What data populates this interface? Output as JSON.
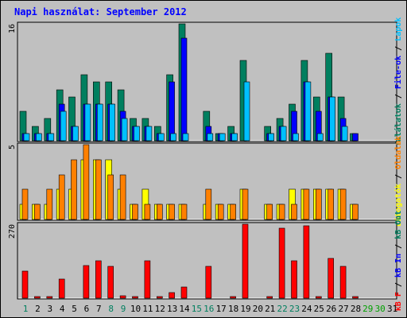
{
  "title": "Napi használat: September 2012",
  "colors": {
    "hits": "#007f5f",
    "files": "#0000ff",
    "pages": "#00c0ff",
    "visits": "#ffff00",
    "sites": "#ff8000",
    "kbin": "#0000ff",
    "kbout": "#007f5f",
    "kbf": "#ff0000",
    "weekday": "#007f5f",
    "weekend": "#000000",
    "future": "#00a000"
  },
  "chart_data": [
    {
      "type": "bar",
      "panel": "top",
      "ylim": [
        0,
        16
      ],
      "y_tick_label": "16",
      "side_legend": [
        {
          "text": "Találatok",
          "color": "#007f5f"
        },
        {
          "text": " / ",
          "color": "#000000"
        },
        {
          "text": "File-ok",
          "color": "#0000ff"
        },
        {
          "text": " / ",
          "color": "#000000"
        },
        {
          "text": "Lapok",
          "color": "#00c0ff"
        }
      ],
      "categories": [
        "1",
        "2",
        "3",
        "4",
        "5",
        "6",
        "7",
        "8",
        "9",
        "10",
        "11",
        "12",
        "13",
        "14",
        "15",
        "16",
        "17",
        "18",
        "19",
        "20",
        "21",
        "22",
        "23",
        "24",
        "25",
        "26",
        "27",
        "28",
        "29",
        "30",
        "31"
      ],
      "series": [
        {
          "name": "Találatok",
          "color": "#007f5f",
          "values": [
            4,
            2,
            3,
            7,
            6,
            9,
            8,
            8,
            7,
            3,
            3,
            2,
            9,
            16,
            0,
            4,
            1,
            2,
            11,
            0,
            2,
            3,
            5,
            11,
            6,
            12,
            6,
            1,
            0,
            0,
            0
          ]
        },
        {
          "name": "File-ok",
          "color": "#0000ff",
          "values": [
            1,
            1,
            1,
            5,
            2,
            5,
            5,
            5,
            4,
            2,
            2,
            1,
            8,
            14,
            0,
            2,
            1,
            1,
            0,
            0,
            1,
            2,
            4,
            8,
            4,
            6,
            3,
            1,
            0,
            0,
            0
          ]
        },
        {
          "name": "Lapok",
          "color": "#00c0ff",
          "values": [
            1,
            1,
            1,
            4,
            2,
            5,
            5,
            5,
            3,
            2,
            2,
            1,
            1,
            1,
            0,
            1,
            1,
            1,
            8,
            0,
            1,
            2,
            1,
            8,
            1,
            6,
            2,
            0,
            0,
            0,
            0
          ]
        }
      ]
    },
    {
      "type": "bar",
      "panel": "middle",
      "ylim": [
        0,
        5
      ],
      "y_tick_label": "5",
      "side_legend": [
        {
          "text": "Látogatók",
          "color": "#ffff00"
        },
        {
          "text": " / ",
          "color": "#000000"
        },
        {
          "text": "Oldalak",
          "color": "#ff8000"
        }
      ],
      "categories": [
        "1",
        "2",
        "3",
        "4",
        "5",
        "6",
        "7",
        "8",
        "9",
        "10",
        "11",
        "12",
        "13",
        "14",
        "15",
        "16",
        "17",
        "18",
        "19",
        "20",
        "21",
        "22",
        "23",
        "24",
        "25",
        "26",
        "27",
        "28",
        "29",
        "30",
        "31"
      ],
      "series": [
        {
          "name": "Látogatók",
          "color": "#ffff00",
          "values": [
            1,
            1,
            1,
            2,
            2,
            4,
            4,
            4,
            2,
            1,
            2,
            1,
            1,
            1,
            0,
            1,
            1,
            1,
            2,
            0,
            1,
            1,
            2,
            2,
            2,
            2,
            2,
            1,
            0,
            0,
            0
          ]
        },
        {
          "name": "Oldalak",
          "color": "#ff8000",
          "values": [
            2,
            1,
            2,
            3,
            4,
            5,
            4,
            3,
            3,
            1,
            1,
            1,
            1,
            1,
            0,
            2,
            1,
            1,
            2,
            0,
            1,
            1,
            1,
            2,
            2,
            2,
            2,
            1,
            0,
            0,
            0
          ]
        }
      ]
    },
    {
      "type": "bar",
      "panel": "bottom",
      "ylim": [
        0,
        270
      ],
      "y_tick_label": "270",
      "side_legend": [
        {
          "text": "kB F",
          "color": "#ff0000"
        },
        {
          "text": " / ",
          "color": "#000000"
        },
        {
          "text": "kB In",
          "color": "#0000ff"
        },
        {
          "text": " / ",
          "color": "#000000"
        },
        {
          "text": "kB Out",
          "color": "#007f5f"
        }
      ],
      "categories": [
        "1",
        "2",
        "3",
        "4",
        "5",
        "6",
        "7",
        "8",
        "9",
        "10",
        "11",
        "12",
        "13",
        "14",
        "15",
        "16",
        "17",
        "18",
        "19",
        "20",
        "21",
        "22",
        "23",
        "24",
        "25",
        "26",
        "27",
        "28",
        "29",
        "30",
        "31"
      ],
      "series": [
        {
          "name": "kB F",
          "color": "#ff0000",
          "values": [
            100,
            5,
            5,
            70,
            0,
            120,
            135,
            115,
            10,
            5,
            135,
            5,
            20,
            40,
            0,
            115,
            0,
            5,
            270,
            0,
            5,
            255,
            135,
            265,
            5,
            145,
            115,
            5,
            0,
            0,
            0
          ]
        }
      ]
    }
  ],
  "x_labels": [
    {
      "text": "1",
      "kind": "weekday"
    },
    {
      "text": "2",
      "kind": "weekend"
    },
    {
      "text": "3",
      "kind": "weekend"
    },
    {
      "text": "4",
      "kind": "weekend"
    },
    {
      "text": "5",
      "kind": "weekend"
    },
    {
      "text": "6",
      "kind": "weekend"
    },
    {
      "text": "7",
      "kind": "weekend"
    },
    {
      "text": "8",
      "kind": "weekday"
    },
    {
      "text": "9",
      "kind": "weekday"
    },
    {
      "text": "10",
      "kind": "weekend"
    },
    {
      "text": "11",
      "kind": "weekend"
    },
    {
      "text": "12",
      "kind": "weekend"
    },
    {
      "text": "13",
      "kind": "weekend"
    },
    {
      "text": "14",
      "kind": "weekend"
    },
    {
      "text": "15",
      "kind": "weekday"
    },
    {
      "text": "16",
      "kind": "weekday"
    },
    {
      "text": "17",
      "kind": "weekend"
    },
    {
      "text": "18",
      "kind": "weekend"
    },
    {
      "text": "19",
      "kind": "weekend"
    },
    {
      "text": "20",
      "kind": "weekend"
    },
    {
      "text": "21",
      "kind": "weekend"
    },
    {
      "text": "22",
      "kind": "weekday"
    },
    {
      "text": "23",
      "kind": "weekday"
    },
    {
      "text": "24",
      "kind": "weekend"
    },
    {
      "text": "25",
      "kind": "weekend"
    },
    {
      "text": "26",
      "kind": "weekend"
    },
    {
      "text": "27",
      "kind": "weekend"
    },
    {
      "text": "28",
      "kind": "weekend"
    },
    {
      "text": "29",
      "kind": "future"
    },
    {
      "text": "30",
      "kind": "future"
    },
    {
      "text": "31",
      "kind": "weekend"
    }
  ]
}
